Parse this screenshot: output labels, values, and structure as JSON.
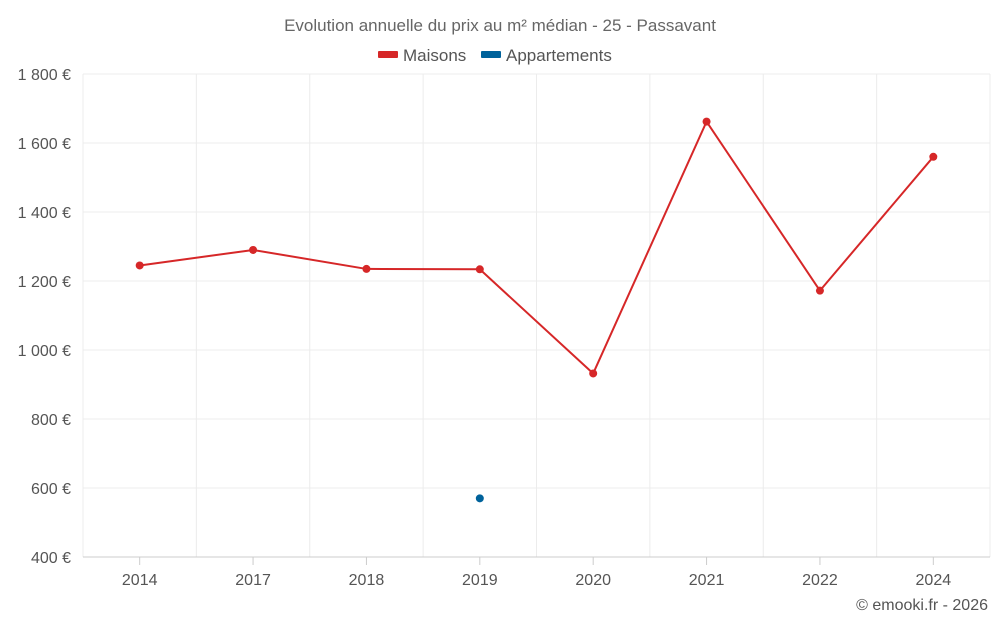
{
  "chart_data": {
    "type": "line",
    "title": "Evolution annuelle du prix au m² médian - 25 - Passavant",
    "categories": [
      "2014",
      "2017",
      "2018",
      "2019",
      "2020",
      "2021",
      "2022",
      "2024"
    ],
    "series": [
      {
        "name": "Maisons",
        "color": "#d62728",
        "values": [
          1245,
          1290,
          1235,
          1234,
          932,
          1662,
          1172,
          1560
        ]
      },
      {
        "name": "Appartements",
        "color": "#00629b",
        "values": [
          null,
          null,
          null,
          570,
          null,
          null,
          null,
          null
        ]
      }
    ],
    "ylim": [
      400,
      1800
    ],
    "yticks": [
      400,
      600,
      800,
      1000,
      1200,
      1400,
      1600,
      1800
    ],
    "ytick_labels": [
      "400 €",
      "600 €",
      "800 €",
      "1 000 €",
      "1 200 €",
      "1 400 €",
      "1 600 €",
      "1 800 €"
    ],
    "xlabel": "",
    "ylabel": "",
    "grid": true,
    "legend_position": "top-center"
  },
  "credit": "© emooki.fr - 2026"
}
